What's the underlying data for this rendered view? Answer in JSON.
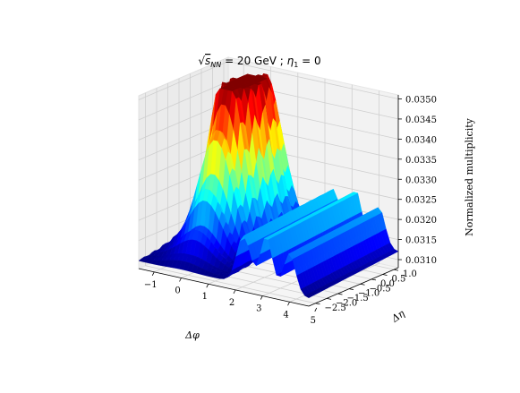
{
  "chart_data": {
    "type": "surface3d",
    "title": {
      "sqrt_symbol": "√",
      "sqrt_var": "s",
      "sqrt_sub": "NN",
      "rest": " = 20 GeV ; ",
      "eta_var": "η",
      "eta_sub": "1",
      "eta_rest": " = 0"
    },
    "xlabel": "Δφ",
    "ylabel": "Δη",
    "zlabel": "Normalized multiplicity",
    "x_ticks": [
      "−1",
      "0",
      "1",
      "2",
      "3",
      "4",
      "5"
    ],
    "x_tick_values": [
      -1,
      0,
      1,
      2,
      3,
      4,
      5
    ],
    "y_ticks": [
      "−2.5",
      "−2.0",
      "−1.5",
      "−1.0",
      "−0.5",
      "0.0",
      "0.5",
      "1.0"
    ],
    "y_tick_values": [
      -2.5,
      -2.0,
      -1.5,
      -1.0,
      -0.5,
      0.0,
      0.5,
      1.0
    ],
    "z_ticks": [
      "0.0310",
      "0.0315",
      "0.0320",
      "0.0325",
      "0.0330",
      "0.0335",
      "0.0340",
      "0.0345",
      "0.0350"
    ],
    "z_tick_values": [
      0.031,
      0.0315,
      0.032,
      0.0325,
      0.033,
      0.0335,
      0.034,
      0.0345,
      0.035
    ],
    "xlim": [
      -1.57,
      4.71
    ],
    "ylim": [
      -2.8,
      1.2
    ],
    "zlim": [
      0.0308,
      0.0351
    ],
    "clip_max": 0.035,
    "colormap": "jet",
    "grid": true,
    "surface": {
      "x_range": [
        -1.57,
        4.71
      ],
      "y_range": [
        -2.8,
        1.2
      ],
      "near_side_peak": {
        "x": 0.0,
        "y": 0.0,
        "height": 0.0056,
        "sigma_x": 0.62,
        "sigma_y": 1.0
      },
      "ridges": [
        {
          "x": 3.14,
          "height": 0.0013,
          "sigma": 0.22
        },
        {
          "x": 2.3,
          "height": 0.0012,
          "sigma": 0.25
        },
        {
          "x": 4.0,
          "height": 0.001,
          "sigma": 0.22
        }
      ],
      "base": 0.031,
      "eta_slope": 0.0002,
      "eta_modulation": {
        "amplitude": 0.00045,
        "period": 0.45
      }
    }
  }
}
